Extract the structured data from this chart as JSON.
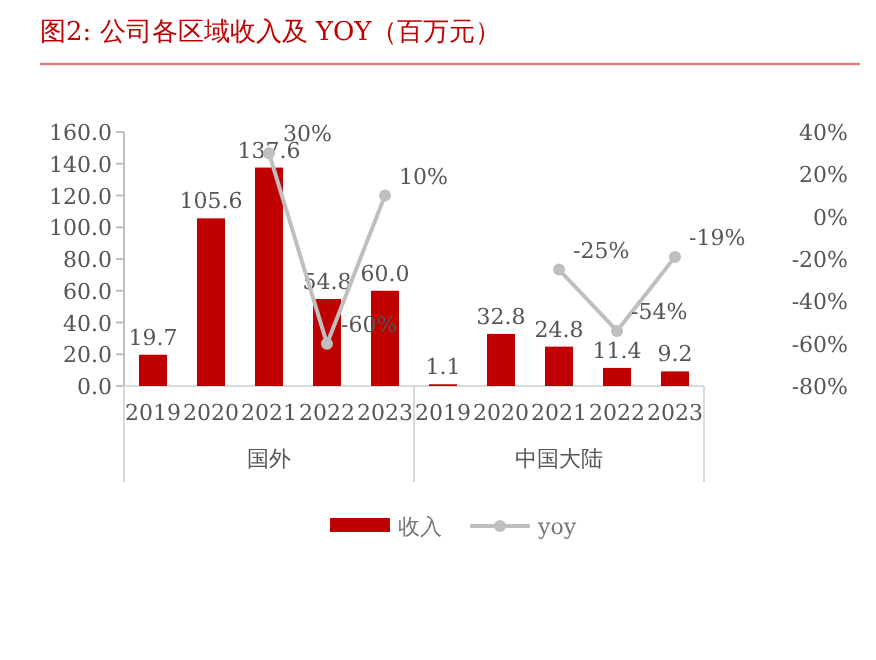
{
  "chart_data": {
    "type": "bar",
    "title": "图2:  公司各区域收入及 YOY（百万元）",
    "categories": [
      "2019",
      "2020",
      "2021",
      "2022",
      "2023",
      "2019",
      "2020",
      "2021",
      "2022",
      "2023"
    ],
    "series": [
      {
        "name": "收入",
        "color": "#c00000",
        "values": [
          19.7,
          105.6,
          137.6,
          54.8,
          60.0,
          1.1,
          32.8,
          24.8,
          11.4,
          9.2
        ],
        "value_labels": [
          "19.7",
          "105.6",
          "137.6",
          "54.8",
          "60.0",
          "1.1",
          "32.8",
          "24.8",
          "11.4",
          "9.2"
        ]
      },
      {
        "name": "yoy",
        "type": "line",
        "axis": "y2",
        "color": "#bfbfbf",
        "marker": "circle",
        "values": [
          null,
          null,
          30,
          -60,
          10,
          null,
          null,
          -25,
          -54,
          -19
        ],
        "value_labels": [
          null,
          null,
          "30%",
          "-60%",
          "10%",
          null,
          null,
          "-25%",
          "-54%",
          "-19%"
        ]
      }
    ],
    "ylim": [
      0,
      160
    ],
    "yticks": [
      {
        "value": 0,
        "label": "0.0"
      },
      {
        "value": 20,
        "label": "20.0"
      },
      {
        "value": 40,
        "label": "40.0"
      },
      {
        "value": 60,
        "label": "60.0"
      },
      {
        "value": 80,
        "label": "80.0"
      },
      {
        "value": 100,
        "label": "100.0"
      },
      {
        "value": 120,
        "label": "120.0"
      },
      {
        "value": 140,
        "label": "140.0"
      },
      {
        "value": 160,
        "label": "160.0"
      }
    ],
    "y2lim": [
      -80,
      40
    ],
    "y2ticks": [
      {
        "value": -80,
        "label": "-80%"
      },
      {
        "value": -60,
        "label": "-60%"
      },
      {
        "value": -40,
        "label": "-40%"
      },
      {
        "value": -20,
        "label": "-20%"
      },
      {
        "value": 0,
        "label": "0%"
      },
      {
        "value": 20,
        "label": "20%"
      },
      {
        "value": 40,
        "label": "40%"
      }
    ],
    "annotations": [
      "国外",
      "中国大陆"
    ],
    "legend": "bottom",
    "grid": false
  }
}
